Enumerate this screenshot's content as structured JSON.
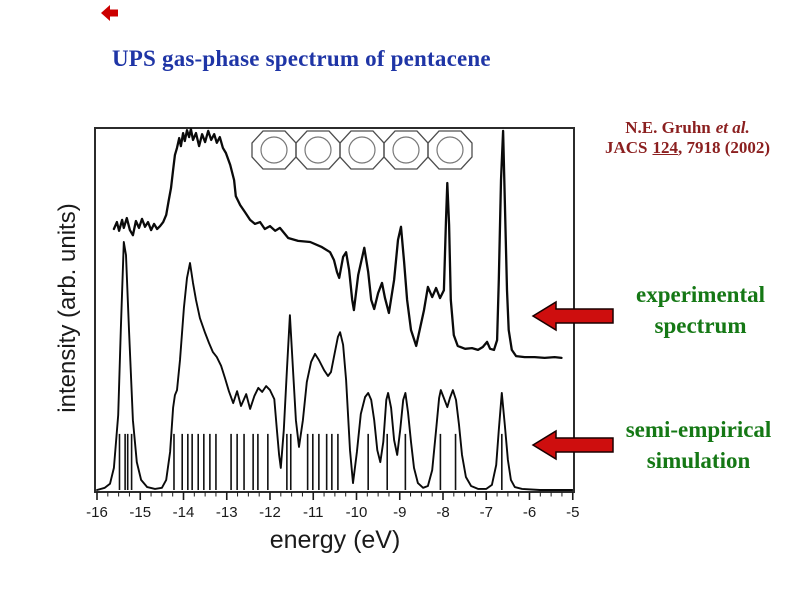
{
  "slide": {
    "corner_mark": {
      "color": "#CC0000"
    },
    "title": {
      "text": "UPS gas-phase spectrum of pentacene",
      "color": "#1F35A6"
    },
    "citation": {
      "author": "N.E. Gruhn",
      "etal": "et al.",
      "journal": "JACS",
      "volume": "124",
      "rest": ", 7918 (2002)",
      "color": "#8B1F1F"
    },
    "annotations": [
      {
        "line1": "experimental",
        "line2": "spectrum"
      },
      {
        "line1": "semi-empirical",
        "line2": "simulation"
      }
    ],
    "annotation_color": "#157815",
    "arrow_color": "#CE0E0E"
  },
  "chart_data": {
    "type": "line",
    "title": "",
    "xlabel": "energy (eV)",
    "ylabel": "intensity (arb. units)",
    "xlim": [
      -16.05,
      -4.95
    ],
    "ylim": [
      0,
      1
    ],
    "x_major_ticks": [
      -16,
      -15,
      -14,
      -13,
      -12,
      -11,
      -10,
      -9,
      -8,
      -7,
      -6,
      -5
    ],
    "x_minor_tick_step": 0.25,
    "grid": false,
    "legend_position": "right-side text annotations with red arrows",
    "molecule_annotation": "pentacene skeletal structure (5 fused aromatic rings)",
    "series": [
      {
        "name": "experimental spectrum",
        "style": "noisy line",
        "points": [
          [
            -15.61,
            0.721
          ],
          [
            -15.54,
            0.74
          ],
          [
            -15.49,
            0.716
          ],
          [
            -15.42,
            0.746
          ],
          [
            -15.38,
            0.724
          ],
          [
            -15.31,
            0.751
          ],
          [
            -15.24,
            0.718
          ],
          [
            -15.17,
            0.704
          ],
          [
            -15.1,
            0.743
          ],
          [
            -15.03,
            0.724
          ],
          [
            -14.96,
            0.749
          ],
          [
            -14.89,
            0.727
          ],
          [
            -14.82,
            0.74
          ],
          [
            -14.75,
            0.718
          ],
          [
            -14.68,
            0.735
          ],
          [
            -14.61,
            0.721
          ],
          [
            -14.54,
            0.729
          ],
          [
            -14.47,
            0.74
          ],
          [
            -14.4,
            0.76
          ],
          [
            -14.34,
            0.801
          ],
          [
            -14.29,
            0.834
          ],
          [
            -14.24,
            0.884
          ],
          [
            -14.2,
            0.925
          ],
          [
            -14.15,
            0.945
          ],
          [
            -14.1,
            0.972
          ],
          [
            -14.06,
            0.95
          ],
          [
            -14.01,
            0.986
          ],
          [
            -13.97,
            0.964
          ],
          [
            -13.92,
            0.994
          ],
          [
            -13.87,
            0.975
          ],
          [
            -13.83,
            0.997
          ],
          [
            -13.78,
            0.967
          ],
          [
            -13.71,
            0.986
          ],
          [
            -13.64,
            0.95
          ],
          [
            -13.57,
            0.983
          ],
          [
            -13.5,
            0.961
          ],
          [
            -13.43,
            0.992
          ],
          [
            -13.36,
            0.967
          ],
          [
            -13.29,
            0.983
          ],
          [
            -13.23,
            0.959
          ],
          [
            -13.16,
            0.975
          ],
          [
            -13.09,
            0.945
          ],
          [
            -13.02,
            0.931
          ],
          [
            -12.92,
            0.898
          ],
          [
            -12.83,
            0.856
          ],
          [
            -12.79,
            0.812
          ],
          [
            -12.69,
            0.787
          ],
          [
            -12.58,
            0.768
          ],
          [
            -12.46,
            0.746
          ],
          [
            -12.35,
            0.735
          ],
          [
            -12.23,
            0.74
          ],
          [
            -12.12,
            0.721
          ],
          [
            -12.0,
            0.729
          ],
          [
            -11.88,
            0.716
          ],
          [
            -11.77,
            0.724
          ],
          [
            -11.58,
            0.696
          ],
          [
            -11.35,
            0.688
          ],
          [
            -11.07,
            0.685
          ],
          [
            -10.8,
            0.671
          ],
          [
            -10.61,
            0.657
          ],
          [
            -10.52,
            0.635
          ],
          [
            -10.45,
            0.602
          ],
          [
            -10.4,
            0.586
          ],
          [
            -10.31,
            0.644
          ],
          [
            -10.24,
            0.657
          ],
          [
            -10.17,
            0.608
          ],
          [
            -10.1,
            0.525
          ],
          [
            -10.06,
            0.497
          ],
          [
            -9.96,
            0.594
          ],
          [
            -9.82,
            0.669
          ],
          [
            -9.73,
            0.602
          ],
          [
            -9.66,
            0.525
          ],
          [
            -9.59,
            0.5
          ],
          [
            -9.5,
            0.544
          ],
          [
            -9.41,
            0.572
          ],
          [
            -9.34,
            0.53
          ],
          [
            -9.25,
            0.489
          ],
          [
            -9.13,
            0.58
          ],
          [
            -9.04,
            0.691
          ],
          [
            -8.97,
            0.727
          ],
          [
            -8.9,
            0.63
          ],
          [
            -8.83,
            0.525
          ],
          [
            -8.74,
            0.442
          ],
          [
            -8.62,
            0.398
          ],
          [
            -8.44,
            0.497
          ],
          [
            -8.35,
            0.561
          ],
          [
            -8.25,
            0.533
          ],
          [
            -8.16,
            0.558
          ],
          [
            -8.07,
            0.53
          ],
          [
            -7.98,
            0.552
          ],
          [
            -7.93,
            0.746
          ],
          [
            -7.9,
            0.848
          ],
          [
            -7.86,
            0.732
          ],
          [
            -7.82,
            0.525
          ],
          [
            -7.75,
            0.428
          ],
          [
            -7.66,
            0.398
          ],
          [
            -7.49,
            0.39
          ],
          [
            -7.33,
            0.392
          ],
          [
            -7.19,
            0.387
          ],
          [
            -7.08,
            0.395
          ],
          [
            -6.98,
            0.409
          ],
          [
            -6.91,
            0.39
          ],
          [
            -6.82,
            0.387
          ],
          [
            -6.75,
            0.414
          ],
          [
            -6.71,
            0.58
          ],
          [
            -6.66,
            0.856
          ],
          [
            -6.61,
            0.992
          ],
          [
            -6.57,
            0.801
          ],
          [
            -6.52,
            0.552
          ],
          [
            -6.48,
            0.442
          ],
          [
            -6.41,
            0.387
          ],
          [
            -6.31,
            0.37
          ],
          [
            -6.11,
            0.367
          ],
          [
            -5.88,
            0.367
          ],
          [
            -5.65,
            0.365
          ],
          [
            -5.42,
            0.367
          ],
          [
            -5.26,
            0.365
          ]
        ]
      },
      {
        "name": "semi-empirical simulation",
        "style": "smooth line",
        "points": [
          [
            -16.0,
            0.0
          ],
          [
            -15.82,
            0.006
          ],
          [
            -15.7,
            0.017
          ],
          [
            -15.61,
            0.061
          ],
          [
            -15.51,
            0.207
          ],
          [
            -15.45,
            0.442
          ],
          [
            -15.38,
            0.685
          ],
          [
            -15.33,
            0.649
          ],
          [
            -15.26,
            0.442
          ],
          [
            -15.17,
            0.193
          ],
          [
            -15.08,
            0.077
          ],
          [
            -14.98,
            0.028
          ],
          [
            -14.84,
            0.008
          ],
          [
            -14.66,
            0.003
          ],
          [
            -14.5,
            0.006
          ],
          [
            -14.4,
            0.028
          ],
          [
            -14.31,
            0.105
          ],
          [
            -14.24,
            0.227
          ],
          [
            -14.2,
            0.262
          ],
          [
            -14.15,
            0.276
          ],
          [
            -14.08,
            0.359
          ],
          [
            -13.99,
            0.503
          ],
          [
            -13.92,
            0.586
          ],
          [
            -13.85,
            0.627
          ],
          [
            -13.78,
            0.572
          ],
          [
            -13.71,
            0.525
          ],
          [
            -13.62,
            0.475
          ],
          [
            -13.5,
            0.434
          ],
          [
            -13.41,
            0.406
          ],
          [
            -13.32,
            0.381
          ],
          [
            -13.23,
            0.367
          ],
          [
            -13.13,
            0.343
          ],
          [
            -13.04,
            0.309
          ],
          [
            -12.95,
            0.273
          ],
          [
            -12.85,
            0.24
          ],
          [
            -12.76,
            0.273
          ],
          [
            -12.67,
            0.232
          ],
          [
            -12.55,
            0.265
          ],
          [
            -12.46,
            0.224
          ],
          [
            -12.36,
            0.26
          ],
          [
            -12.27,
            0.282
          ],
          [
            -12.18,
            0.271
          ],
          [
            -12.09,
            0.287
          ],
          [
            -12.0,
            0.276
          ],
          [
            -11.9,
            0.251
          ],
          [
            -11.84,
            0.166
          ],
          [
            -11.79,
            0.097
          ],
          [
            -11.75,
            0.061
          ],
          [
            -11.68,
            0.166
          ],
          [
            -11.61,
            0.331
          ],
          [
            -11.54,
            0.483
          ],
          [
            -11.47,
            0.337
          ],
          [
            -11.4,
            0.193
          ],
          [
            -11.33,
            0.119
          ],
          [
            -11.24,
            0.193
          ],
          [
            -11.15,
            0.298
          ],
          [
            -11.05,
            0.354
          ],
          [
            -10.96,
            0.376
          ],
          [
            -10.87,
            0.359
          ],
          [
            -10.75,
            0.331
          ],
          [
            -10.66,
            0.315
          ],
          [
            -10.59,
            0.326
          ],
          [
            -10.5,
            0.381
          ],
          [
            -10.43,
            0.423
          ],
          [
            -10.38,
            0.436
          ],
          [
            -10.31,
            0.401
          ],
          [
            -10.24,
            0.304
          ],
          [
            -10.15,
            0.11
          ],
          [
            -10.08,
            0.019
          ],
          [
            -9.99,
            0.105
          ],
          [
            -9.9,
            0.21
          ],
          [
            -9.8,
            0.257
          ],
          [
            -9.73,
            0.268
          ],
          [
            -9.66,
            0.249
          ],
          [
            -9.59,
            0.193
          ],
          [
            -9.52,
            0.11
          ],
          [
            -9.45,
            0.077
          ],
          [
            -9.38,
            0.133
          ],
          [
            -9.31,
            0.249
          ],
          [
            -9.27,
            0.268
          ],
          [
            -9.2,
            0.227
          ],
          [
            -9.13,
            0.138
          ],
          [
            -9.06,
            0.097
          ],
          [
            -8.99,
            0.166
          ],
          [
            -8.92,
            0.249
          ],
          [
            -8.87,
            0.268
          ],
          [
            -8.81,
            0.215
          ],
          [
            -8.74,
            0.133
          ],
          [
            -8.67,
            0.061
          ],
          [
            -8.58,
            0.019
          ],
          [
            -8.46,
            0.006
          ],
          [
            -8.35,
            0.011
          ],
          [
            -8.25,
            0.055
          ],
          [
            -8.16,
            0.166
          ],
          [
            -8.09,
            0.254
          ],
          [
            -8.05,
            0.276
          ],
          [
            -7.98,
            0.254
          ],
          [
            -7.9,
            0.229
          ],
          [
            -7.84,
            0.254
          ],
          [
            -7.77,
            0.276
          ],
          [
            -7.7,
            0.249
          ],
          [
            -7.63,
            0.18
          ],
          [
            -7.56,
            0.097
          ],
          [
            -7.47,
            0.036
          ],
          [
            -7.35,
            0.011
          ],
          [
            -7.19,
            0.003
          ],
          [
            -7.0,
            0.003
          ],
          [
            -6.87,
            0.014
          ],
          [
            -6.77,
            0.069
          ],
          [
            -6.71,
            0.166
          ],
          [
            -6.64,
            0.268
          ],
          [
            -6.57,
            0.18
          ],
          [
            -6.5,
            0.083
          ],
          [
            -6.43,
            0.028
          ],
          [
            -6.34,
            0.008
          ],
          [
            -6.17,
            0.003
          ],
          [
            -5.76,
            0.0
          ],
          [
            -5.29,
            0.0
          ],
          [
            -5.01,
            0.0
          ]
        ]
      },
      {
        "name": "simulation orbital line positions",
        "style": "sticks",
        "height": 0.155,
        "energies": [
          -15.48,
          -15.35,
          -15.29,
          -15.2,
          -14.22,
          -14.03,
          -13.9,
          -13.8,
          -13.66,
          -13.53,
          -13.39,
          -13.25,
          -12.9,
          -12.76,
          -12.6,
          -12.39,
          -12.28,
          -12.05,
          -11.61,
          -11.52,
          -11.13,
          -11.01,
          -10.87,
          -10.69,
          -10.57,
          -10.43,
          -9.73,
          -9.29,
          -8.87,
          -8.06,
          -7.71,
          -6.64
        ]
      }
    ]
  }
}
